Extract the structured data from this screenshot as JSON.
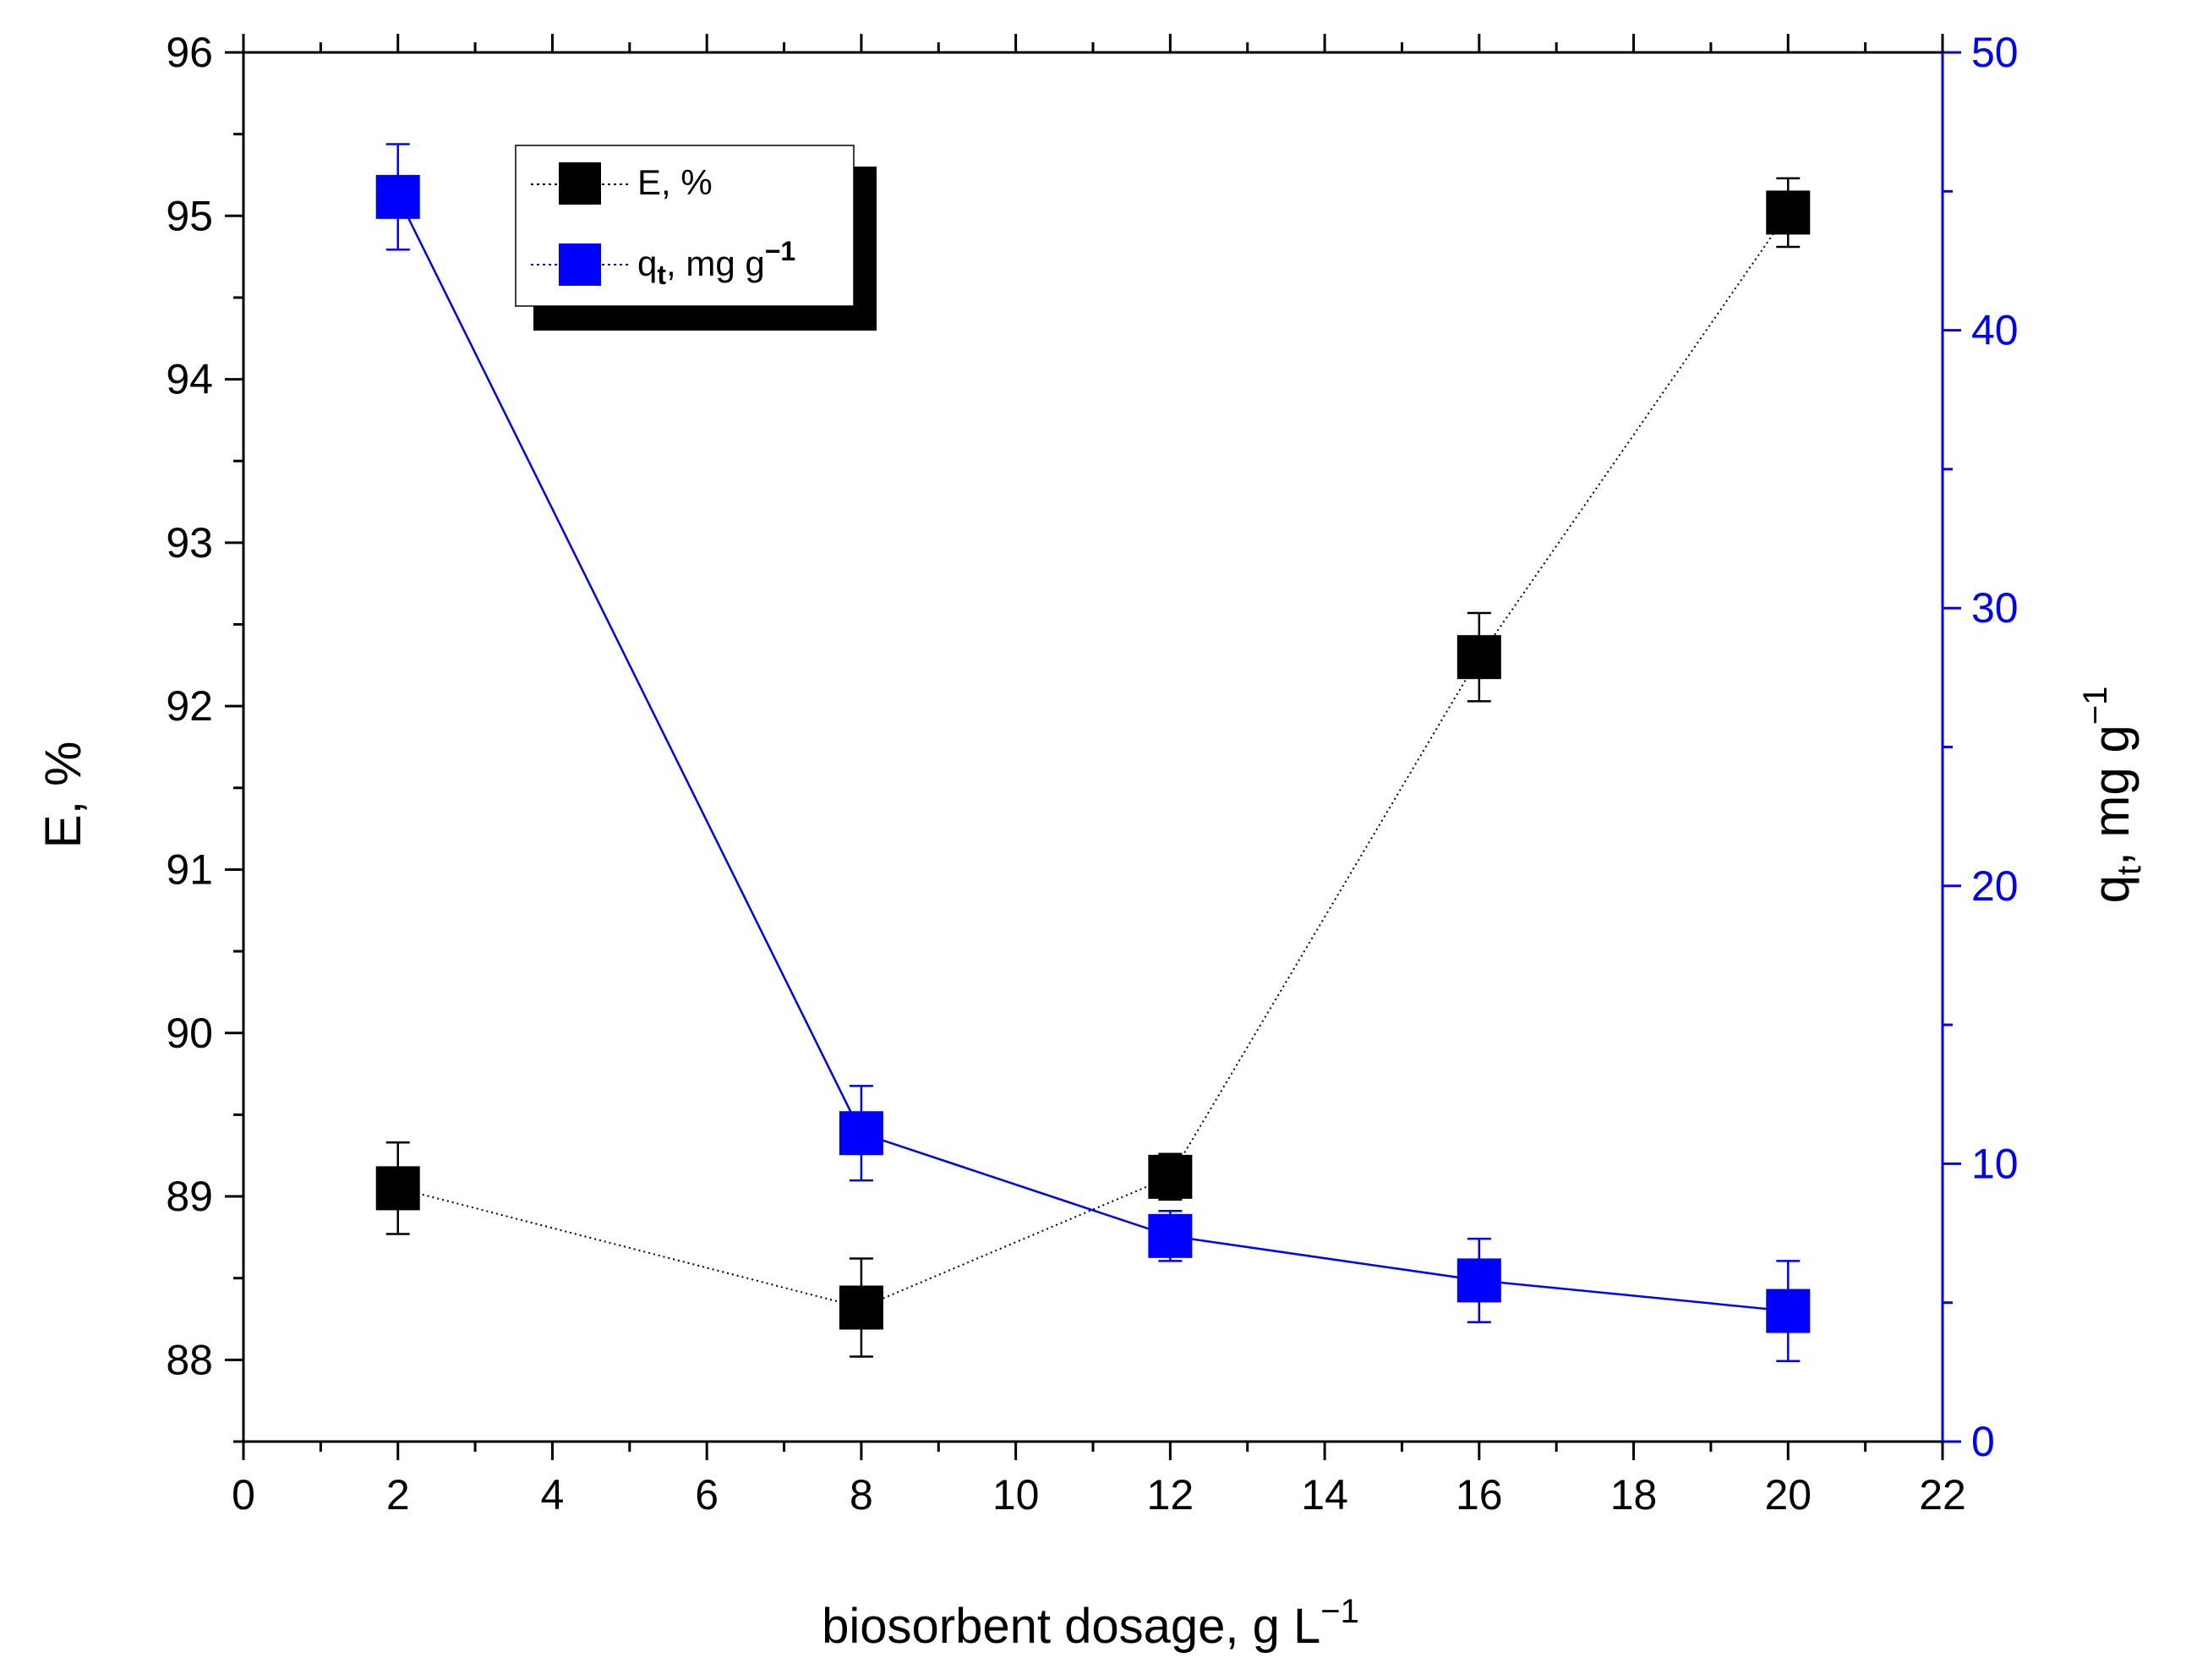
{
  "chart_data": {
    "type": "line",
    "xlabel": "biosorbent dosage, g L",
    "xlabel_sup": "−1",
    "ylabel": "E, %",
    "y2label": "q",
    "y2label_sub": "t",
    "y2label_tail": ", mg g",
    "y2label_sup": "−1",
    "xlim": [
      0,
      22
    ],
    "ylim": [
      87.5,
      96
    ],
    "y2lim": [
      0,
      50
    ],
    "xticks": [
      0,
      2,
      4,
      6,
      8,
      10,
      12,
      14,
      16,
      18,
      20,
      22
    ],
    "yticks": [
      88,
      89,
      90,
      91,
      92,
      93,
      94,
      95,
      96
    ],
    "y2ticks": [
      0,
      10,
      20,
      30,
      40,
      50
    ],
    "legend_position": "top-left",
    "legend": [
      {
        "label": "E, %",
        "color": "#000000"
      },
      {
        "label_main": "q",
        "label_sub": "t",
        "label_tail": ", mg g",
        "label_sup": "−1",
        "color": "#0000ff"
      }
    ],
    "series": [
      {
        "name": "E, %",
        "axis": "left",
        "color": "#000000",
        "line": "dotted",
        "x": [
          2,
          8,
          12,
          16,
          20
        ],
        "y": [
          89.05,
          88.32,
          89.12,
          92.3,
          95.02
        ],
        "err": [
          0.28,
          0.3,
          0.14,
          0.27,
          0.21
        ]
      },
      {
        "name": "qt, mg g-1",
        "axis": "right",
        "color": "#0000ff",
        "line": "solid",
        "x": [
          2,
          8,
          12,
          16,
          20
        ],
        "y": [
          44.8,
          11.1,
          7.4,
          5.8,
          4.7
        ],
        "err": [
          1.9,
          1.7,
          0.9,
          1.5,
          1.8
        ]
      }
    ]
  }
}
